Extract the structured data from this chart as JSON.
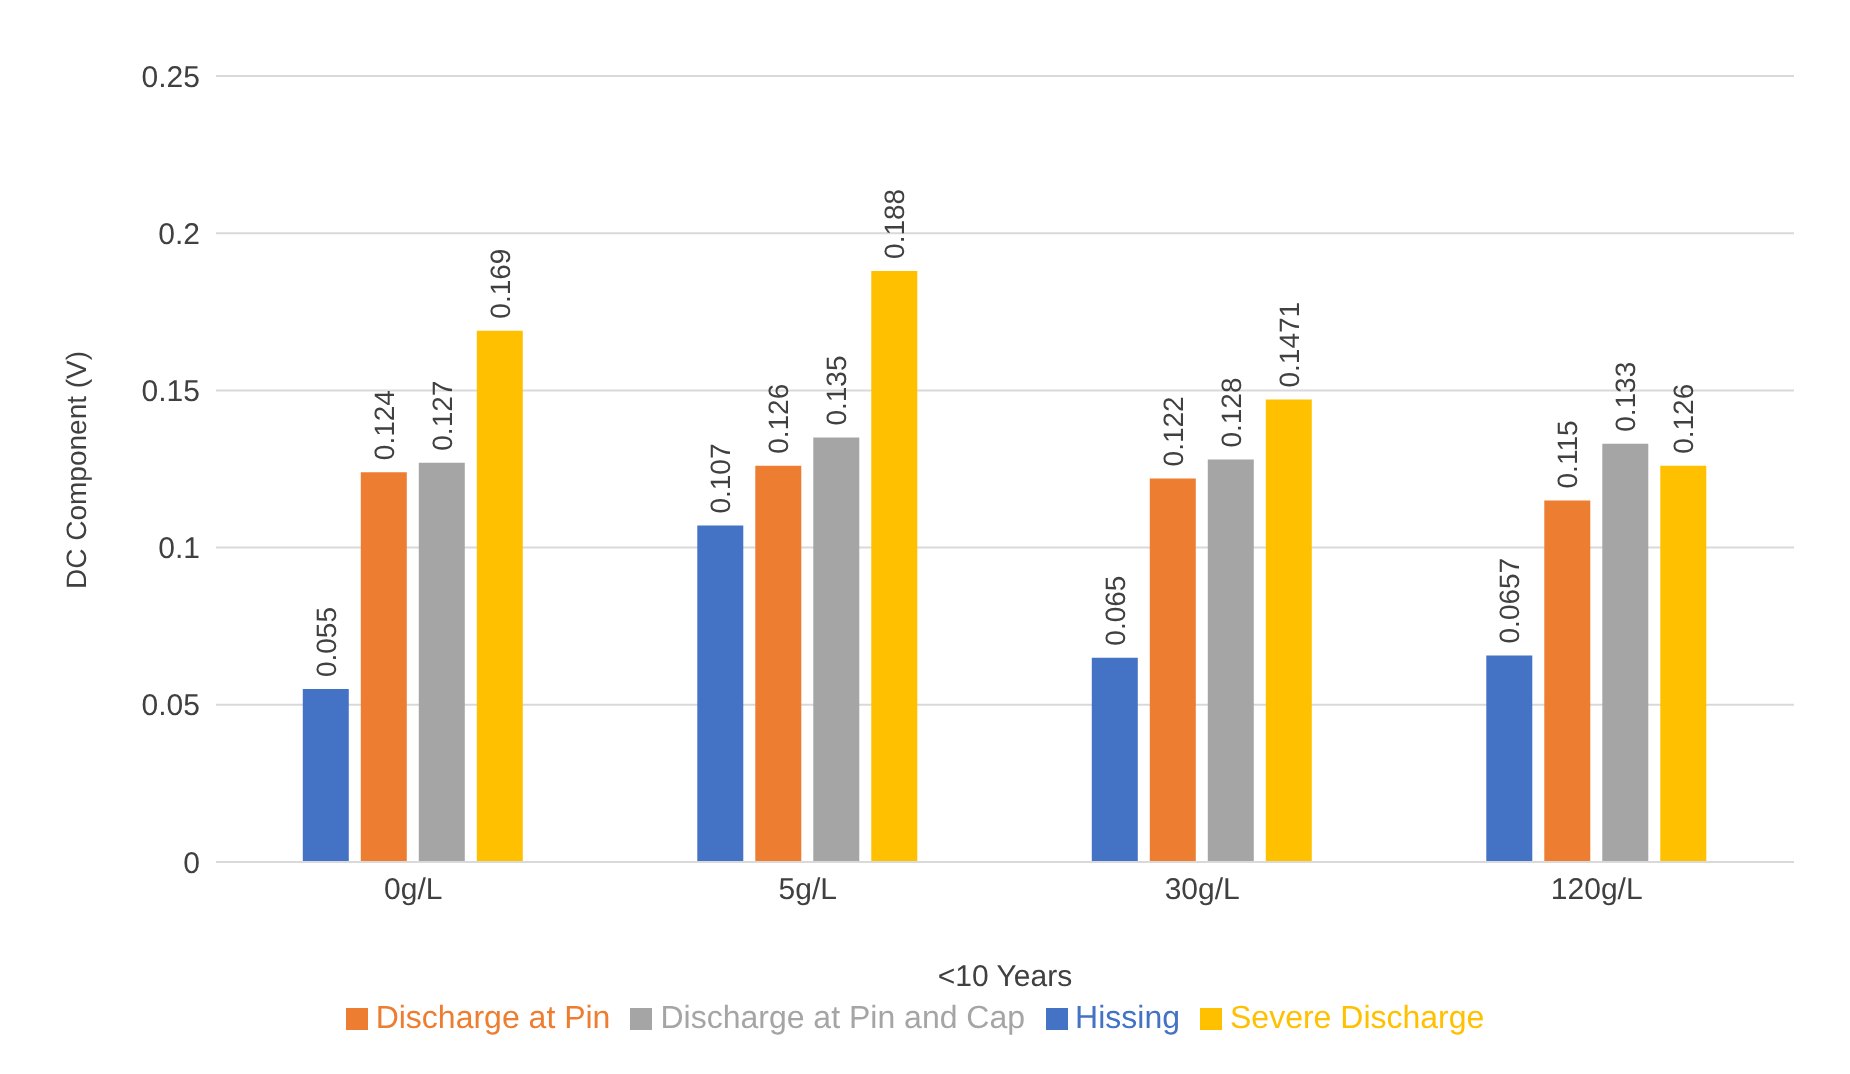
{
  "chart_data": {
    "type": "bar",
    "ylabel": "DC Component (V)",
    "xlabel": "<10 Years",
    "categories": [
      "0g/L",
      "5g/L",
      "30g/L",
      "120g/L"
    ],
    "series": [
      {
        "name": "Hissing",
        "color": "#4472c4",
        "values": [
          0.055,
          0.107,
          0.065,
          0.0657
        ]
      },
      {
        "name": "Discharge at Pin",
        "color": "#ed7d31",
        "values": [
          0.124,
          0.126,
          0.122,
          0.115
        ]
      },
      {
        "name": "Discharge at Pin and Cap",
        "color": "#a5a5a5",
        "values": [
          0.127,
          0.135,
          0.128,
          0.133
        ]
      },
      {
        "name": "Severe Discharge",
        "color": "#ffc000",
        "values": [
          0.169,
          0.188,
          0.1471,
          0.126
        ]
      }
    ],
    "ylim": [
      0,
      0.25
    ],
    "yticks": [
      0,
      0.05,
      0.1,
      0.15,
      0.2,
      0.25
    ],
    "grid": "y",
    "legend": "bottom",
    "data_labels": true
  }
}
